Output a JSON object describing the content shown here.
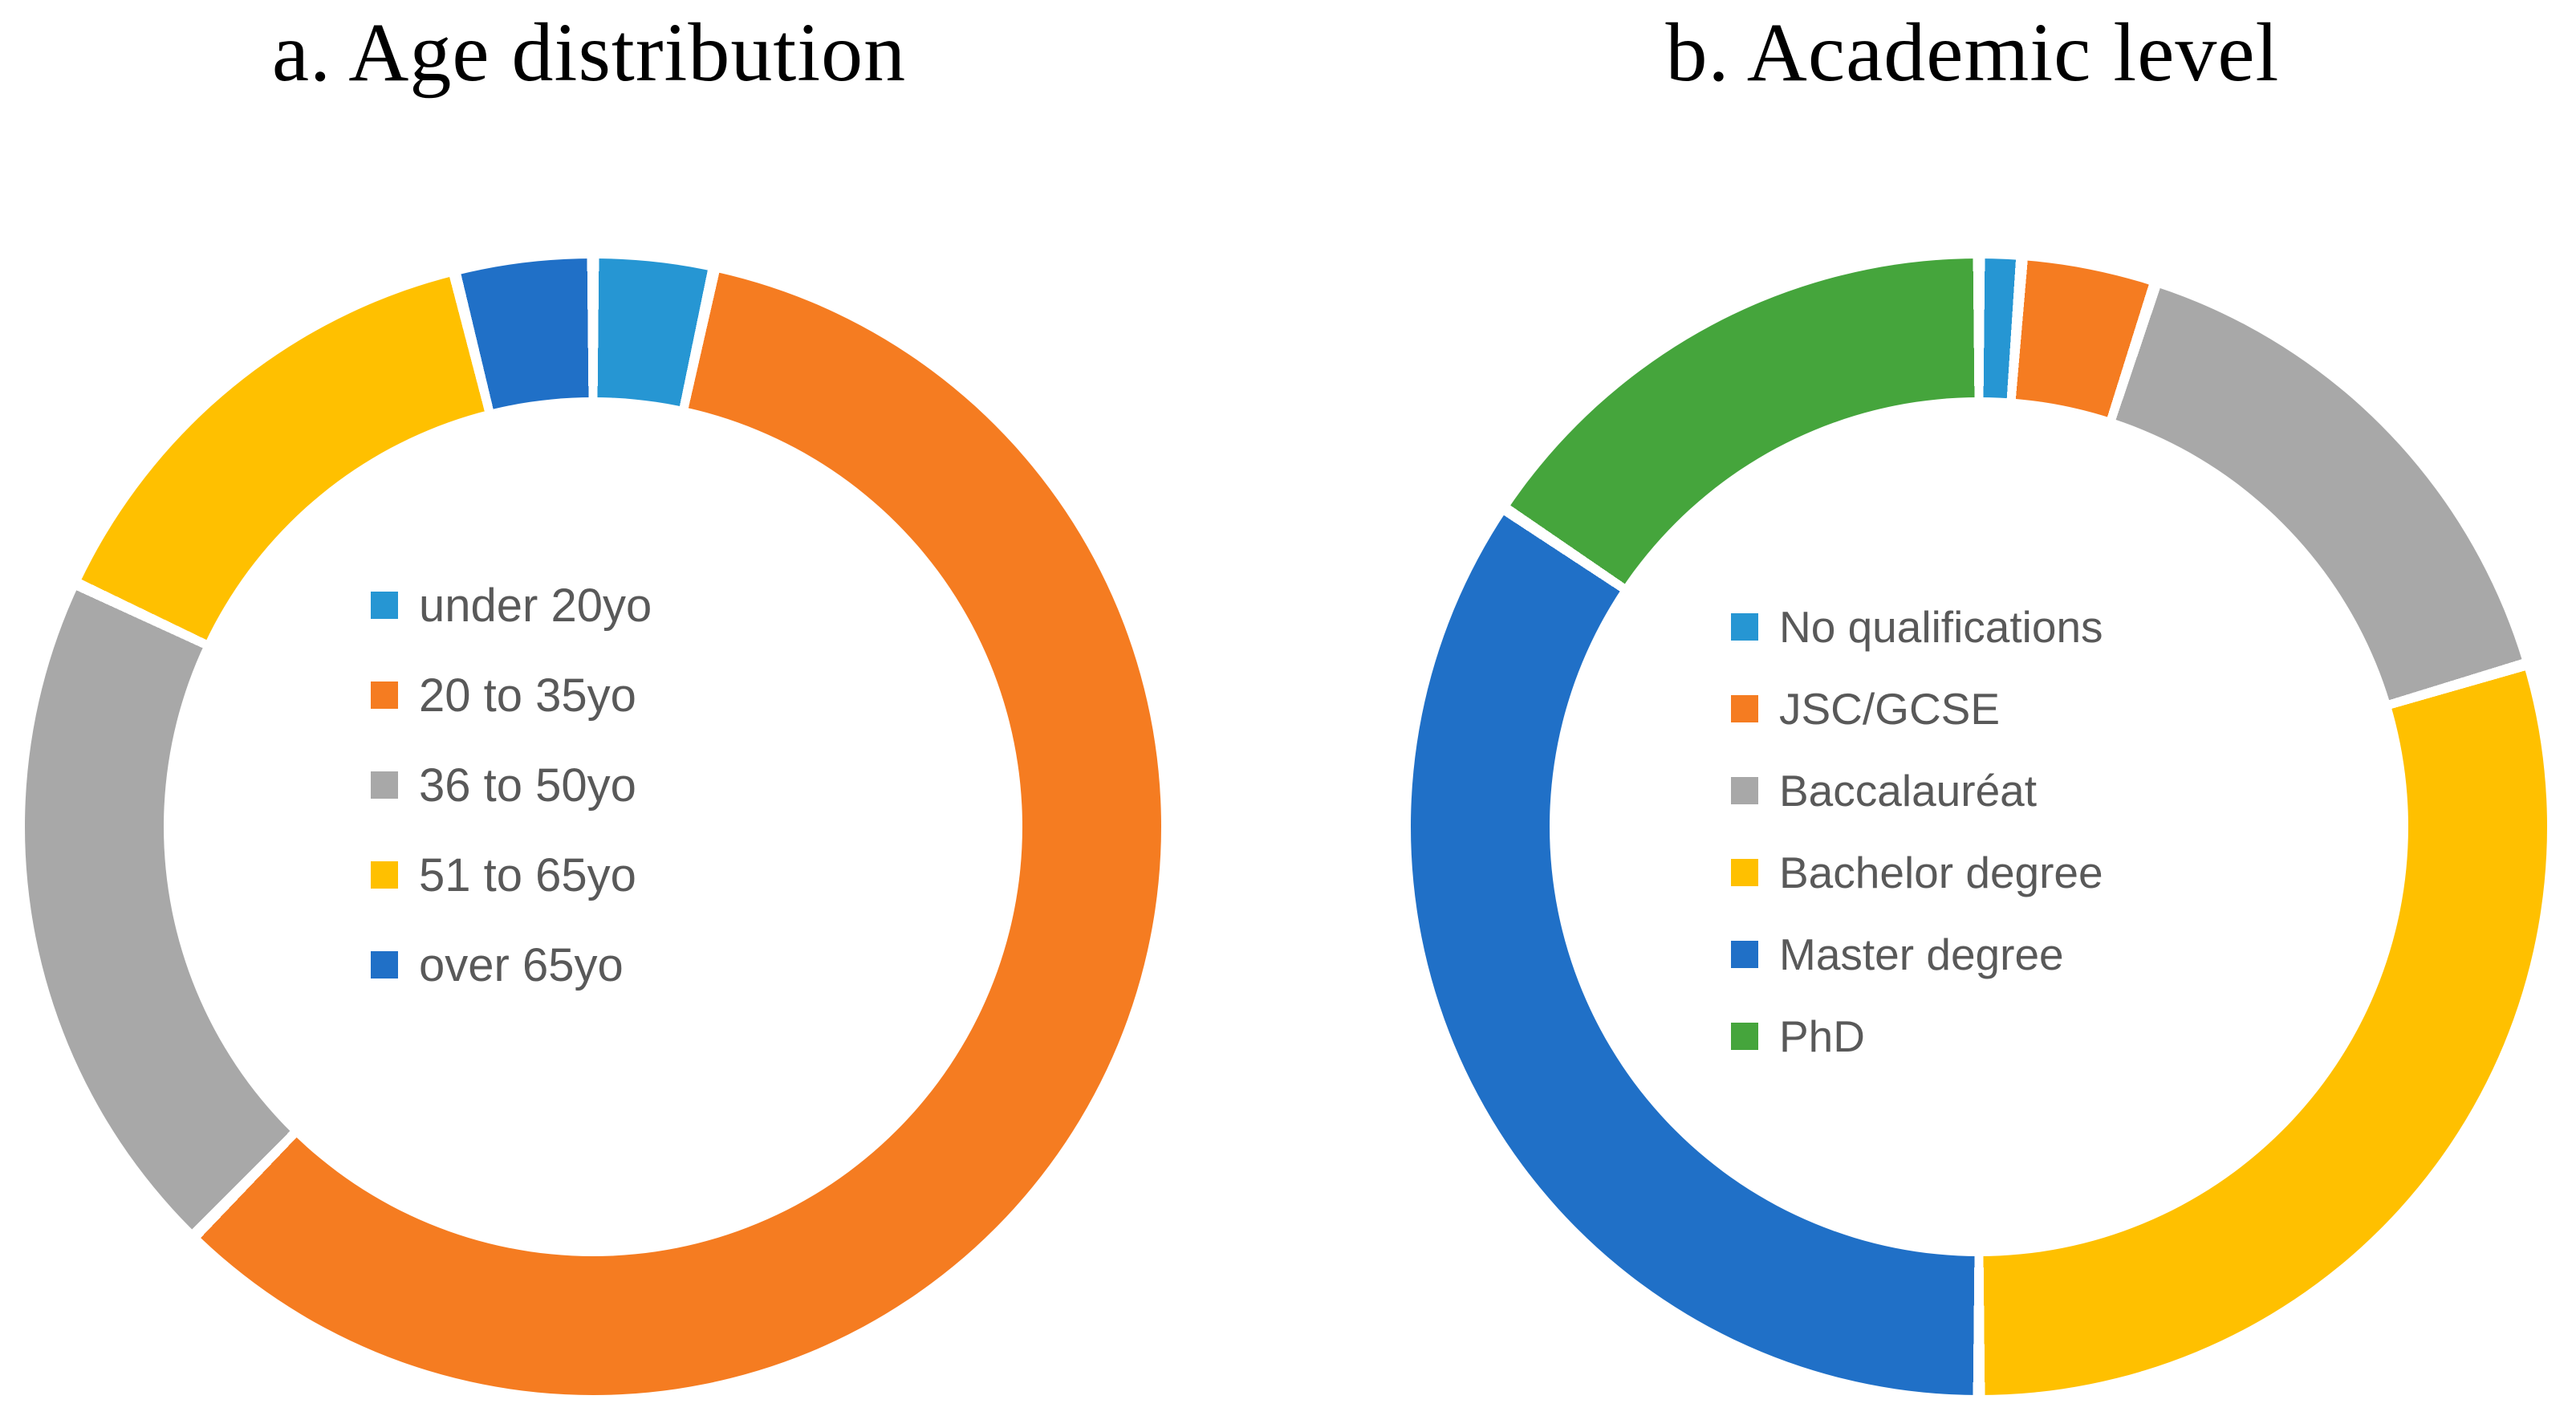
{
  "figure": {
    "background": "#ffffff",
    "text_color_legend": "#595959",
    "text_color_title": "#000000"
  },
  "chart_data": [
    {
      "type": "donut",
      "title": "a. Age distribution",
      "categories": [
        "under 20yo",
        "20 to 35yo",
        "36 to 50yo",
        "51 to 65yo",
        "over 65yo"
      ],
      "values": [
        3.4,
        58.9,
        19.7,
        14.1,
        3.9
      ],
      "unit": "percent-estimated-from-arc-angles",
      "colors": [
        "#2696D3",
        "#F57C21",
        "#A8A8A8",
        "#FFC000",
        "#2070C7"
      ],
      "start_angle_deg": 0,
      "direction": "clockwise",
      "inner_radius_ratio": 0.76,
      "slice_gap_deg": 1.2,
      "legend_position": "center-of-donut"
    },
    {
      "type": "donut",
      "title": "b. Academic level",
      "categories": [
        "No qualifications",
        "JSC/GCSE",
        "Baccalauréat",
        "Bachelor degree",
        "Master degree",
        "PhD"
      ],
      "values": [
        1.2,
        3.8,
        15.4,
        29.6,
        34.4,
        15.6
      ],
      "unit": "percent-estimated-from-arc-angles",
      "colors": [
        "#2696D3",
        "#F57C21",
        "#A8A8A8",
        "#FFC000",
        "#2070C7",
        "#45A53C"
      ],
      "start_angle_deg": 0,
      "direction": "clockwise",
      "inner_radius_ratio": 0.76,
      "slice_gap_deg": 1.2,
      "legend_position": "center-of-donut"
    }
  ]
}
